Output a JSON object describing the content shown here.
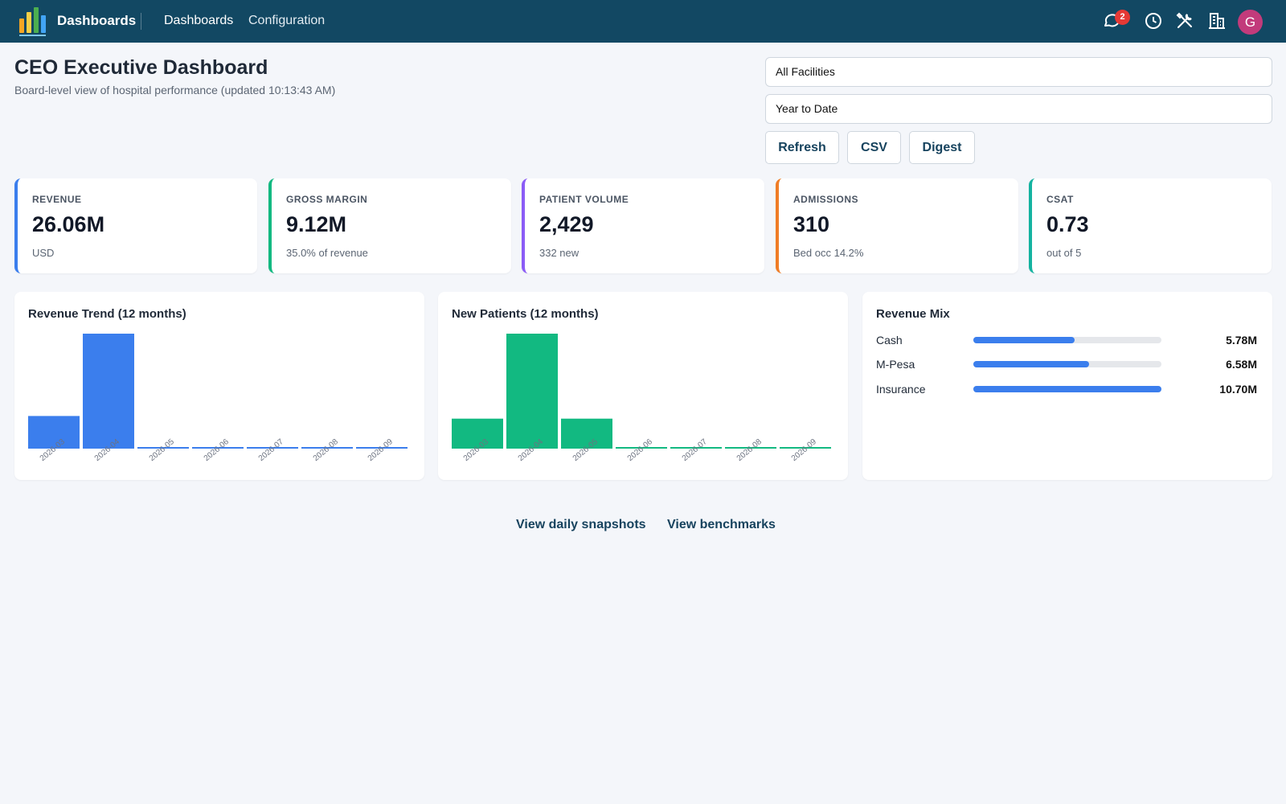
{
  "app": {
    "brand": "Dashboards",
    "nav": [
      "Dashboards",
      "Configuration"
    ],
    "notification_count": "2",
    "avatar_letter": "G",
    "logo_colors": [
      "#f5a623",
      "#f7d046",
      "#4caf50",
      "#42a5f5"
    ]
  },
  "header": {
    "title": "CEO Executive Dashboard",
    "subtitle": "Board-level view of hospital performance (updated 10:13:43 AM)"
  },
  "filters": {
    "facility": "All Facilities",
    "period": "Year to Date"
  },
  "actions": {
    "refresh": "Refresh",
    "csv": "CSV",
    "digest": "Digest"
  },
  "kpis": [
    {
      "label": "REVENUE",
      "value": "26.06M",
      "sub": "USD",
      "color": "#3b7eed"
    },
    {
      "label": "GROSS MARGIN",
      "value": "9.12M",
      "sub": "35.0% of revenue",
      "color": "#12b981"
    },
    {
      "label": "PATIENT VOLUME",
      "value": "2,429",
      "sub": "332 new",
      "color": "#8b5cf6"
    },
    {
      "label": "ADMISSIONS",
      "value": "310",
      "sub": "Bed occ 14.2%",
      "color": "#f07d26"
    },
    {
      "label": "CSAT",
      "value": "0.73",
      "sub": "out of 5",
      "color": "#14b3a0"
    }
  ],
  "cards": {
    "revenue_trend_title": "Revenue Trend (12 months)",
    "new_patients_title": "New Patients (12 months)",
    "revenue_mix_title": "Revenue Mix"
  },
  "chart_data": [
    {
      "type": "bar",
      "title": "Revenue Trend (12 months)",
      "categories": [
        "2026-03",
        "2026-04",
        "2026-05",
        "2026-06",
        "2026-07",
        "2026-08",
        "2026-09"
      ],
      "values": [
        4.0,
        14.1,
        0.2,
        0.2,
        0.2,
        0.2,
        0.2
      ],
      "color": "#3b7eed"
    },
    {
      "type": "bar",
      "title": "New Patients (12 months)",
      "categories": [
        "2026-03",
        "2026-04",
        "2026-05",
        "2026-06",
        "2026-07",
        "2026-08",
        "2026-09"
      ],
      "values": [
        37,
        142,
        37,
        1,
        1,
        1,
        1
      ],
      "color": "#12b981"
    },
    {
      "type": "bar",
      "title": "Revenue Mix",
      "categories": [
        "Cash",
        "M-Pesa",
        "Insurance"
      ],
      "values": [
        5.78,
        6.58,
        10.7
      ],
      "value_labels": [
        "5.78M",
        "6.58M",
        "10.70M"
      ],
      "color": "#3b7eed"
    }
  ],
  "footer": {
    "snapshots": "View daily snapshots",
    "benchmarks": "View benchmarks"
  }
}
